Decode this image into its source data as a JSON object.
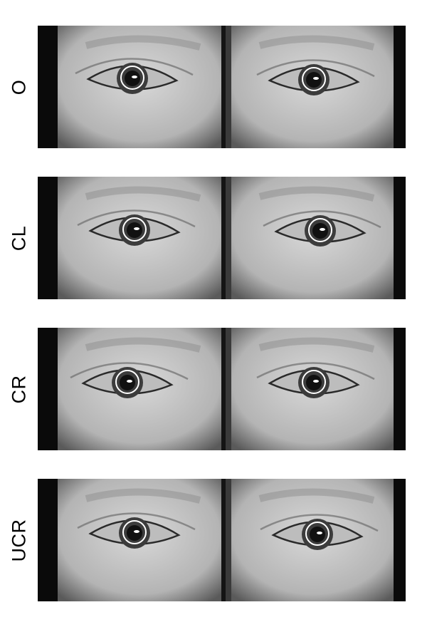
{
  "figure": {
    "rows": [
      {
        "label": "O",
        "left_eye": {
          "marker": "pupil-circle"
        },
        "right_eye": {
          "marker": "pupil-circle"
        }
      },
      {
        "label": "CL",
        "left_eye": {
          "marker": "pupil-circle"
        },
        "right_eye": {
          "marker": "pupil-circle"
        }
      },
      {
        "label": "CR",
        "left_eye": {
          "marker": "pupil-circle"
        },
        "right_eye": {
          "marker": "pupil-circle"
        }
      },
      {
        "label": "UCR",
        "left_eye": {
          "marker": "pupil-circle"
        },
        "right_eye": {
          "marker": "pupil-circle"
        }
      }
    ],
    "colors": {
      "background": "#ffffff",
      "frame": "#0a0a0a",
      "marker": "#ffffff"
    }
  }
}
